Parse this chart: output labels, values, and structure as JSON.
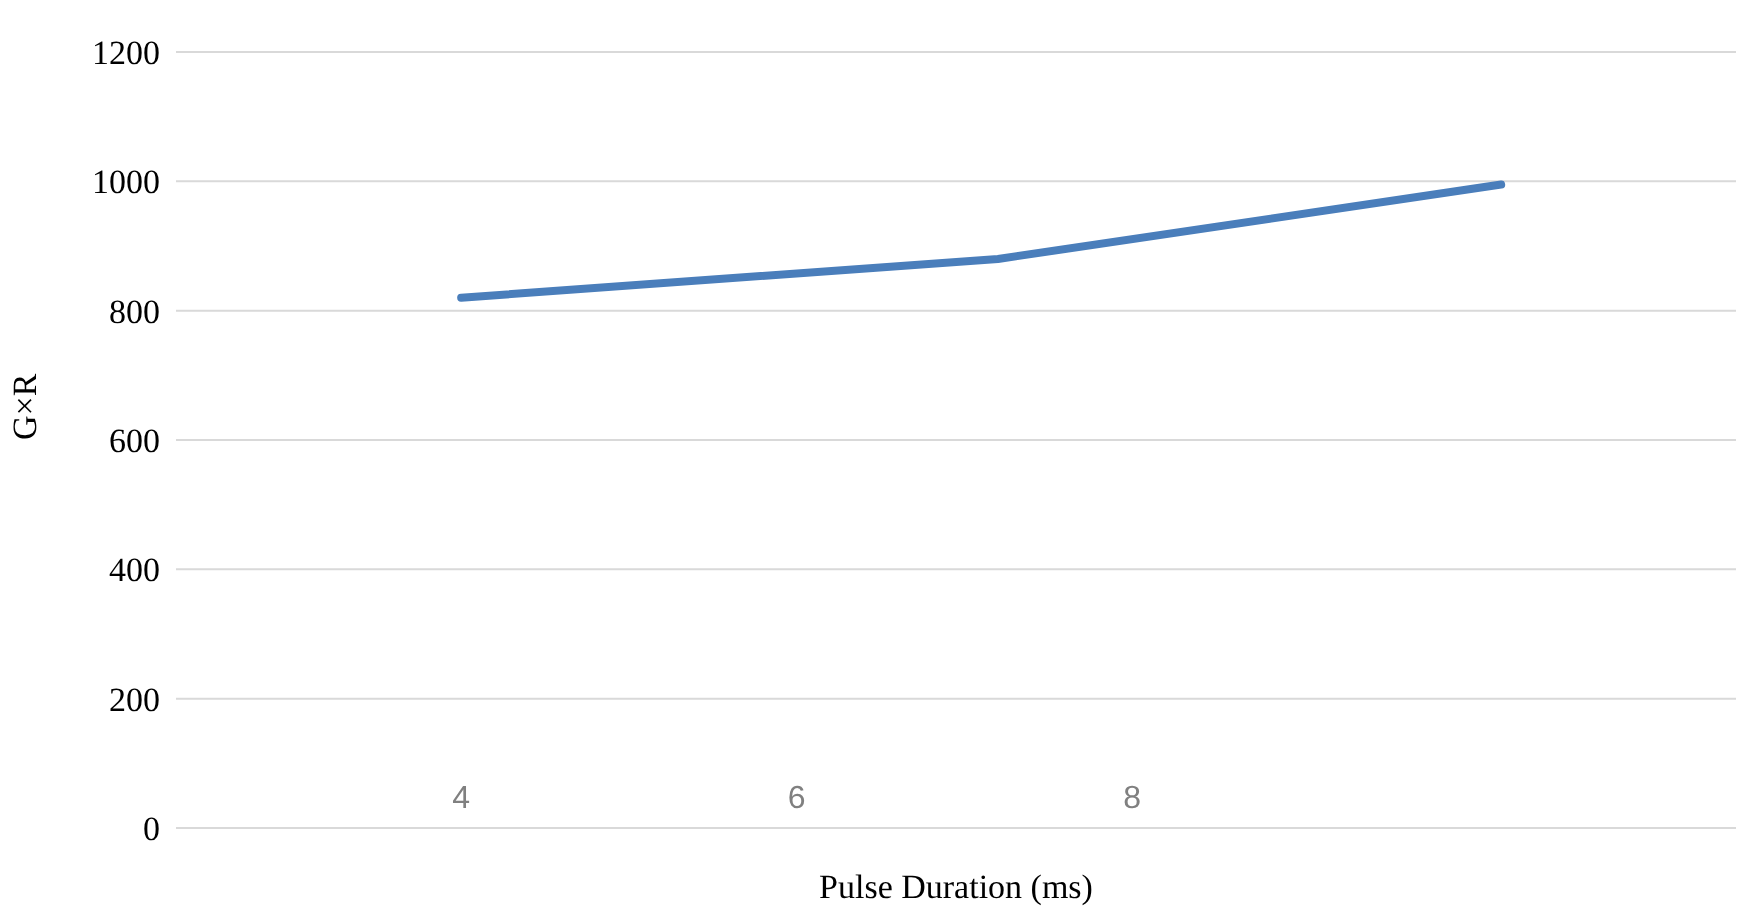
{
  "chart_data": {
    "type": "line",
    "xlabel": "Pulse Duration (ms)",
    "ylabel": "G×R",
    "x": [
      4,
      7.2,
      10.2
    ],
    "series": [
      {
        "color": "#4a7ebb",
        "values": [
          820,
          880,
          995
        ]
      }
    ],
    "xlim": [
      2.3,
      11.6
    ],
    "xticks": [
      4,
      6,
      8
    ],
    "ylim": [
      0,
      1200
    ],
    "yticks": [
      0,
      200,
      400,
      600,
      800,
      1000,
      1200
    ],
    "grid": "y",
    "legend": false,
    "marker": "none",
    "line_style": "solid"
  }
}
